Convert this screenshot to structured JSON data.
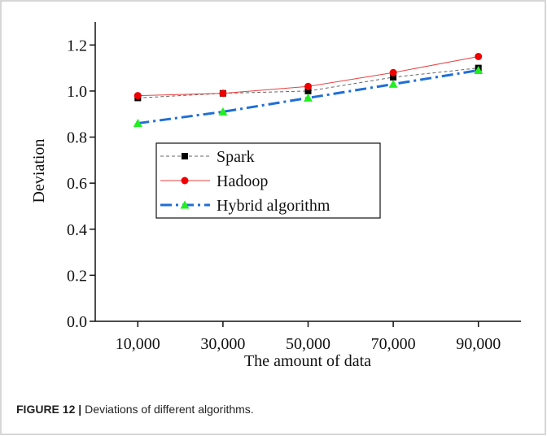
{
  "chart_data": {
    "type": "line",
    "xlabel": "The amount of data",
    "ylabel": "Deviation",
    "x": [
      10000,
      30000,
      50000,
      70000,
      90000
    ],
    "xlim": [
      0,
      100000
    ],
    "xticks": [
      {
        "value": 10000,
        "label": "10,000"
      },
      {
        "value": 30000,
        "label": "30,000"
      },
      {
        "value": 50000,
        "label": "50,000"
      },
      {
        "value": 70000,
        "label": "70,000"
      },
      {
        "value": 90000,
        "label": "90,000"
      }
    ],
    "ylim": [
      0,
      1.3
    ],
    "yticks": [
      {
        "value": 0,
        "label": "0.0"
      },
      0.2,
      0.4,
      0.6,
      0.8,
      {
        "value": 1,
        "label": "1.0"
      },
      1.2
    ],
    "series": [
      {
        "name": "Spark",
        "color": "#666666",
        "marker_color": "#000000",
        "marker": "square",
        "dash": "4 3",
        "width": 1,
        "values": [
          0.97,
          0.99,
          1.0,
          1.06,
          1.1
        ]
      },
      {
        "name": "Hadoop",
        "color": "#e84040",
        "marker_color": "#ee0000",
        "marker": "circle",
        "dash": "none",
        "width": 1,
        "values": [
          0.98,
          0.99,
          1.02,
          1.08,
          1.15
        ]
      },
      {
        "name": "Hybrid algorithm",
        "color": "#1f6fd6",
        "marker_color": "#22ee22",
        "marker": "triangle",
        "dash": "14 5 3 5",
        "width": 3,
        "values": [
          0.86,
          0.91,
          0.97,
          1.03,
          1.09
        ]
      }
    ],
    "legend": "center-left"
  },
  "caption": {
    "label": "FIGURE 12 |",
    "text": "Deviations of different algorithms."
  }
}
